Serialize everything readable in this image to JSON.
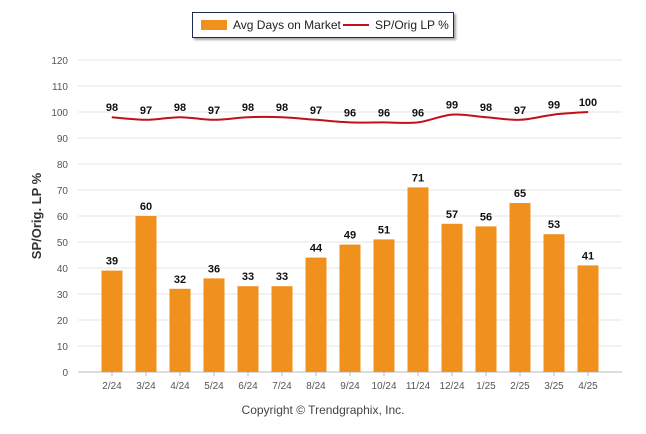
{
  "chart_data": {
    "type": "bar",
    "categories": [
      "2/24",
      "3/24",
      "4/24",
      "5/24",
      "6/24",
      "7/24",
      "8/24",
      "9/24",
      "10/24",
      "11/24",
      "12/24",
      "1/25",
      "2/25",
      "3/25",
      "4/25"
    ],
    "series": [
      {
        "name": "Avg Days on Market",
        "type": "bar",
        "color": "#f0901d",
        "values": [
          39,
          60,
          32,
          36,
          33,
          33,
          44,
          49,
          51,
          71,
          57,
          56,
          65,
          53,
          41
        ]
      },
      {
        "name": "SP/Orig LP %",
        "type": "line",
        "color": "#c0101a",
        "values": [
          98,
          97,
          98,
          97,
          98,
          98,
          97,
          96,
          96,
          96,
          99,
          98,
          97,
          99,
          100
        ]
      }
    ],
    "ylabel": "SP/Orig. LP %",
    "ylim": [
      0,
      120
    ],
    "yticks": [
      0,
      10,
      20,
      30,
      40,
      50,
      60,
      70,
      80,
      90,
      100,
      110,
      120
    ],
    "grid": true,
    "legend_position": "top-center"
  },
  "footer": {
    "copyright": "Copyright © Trendgraphix, Inc."
  }
}
